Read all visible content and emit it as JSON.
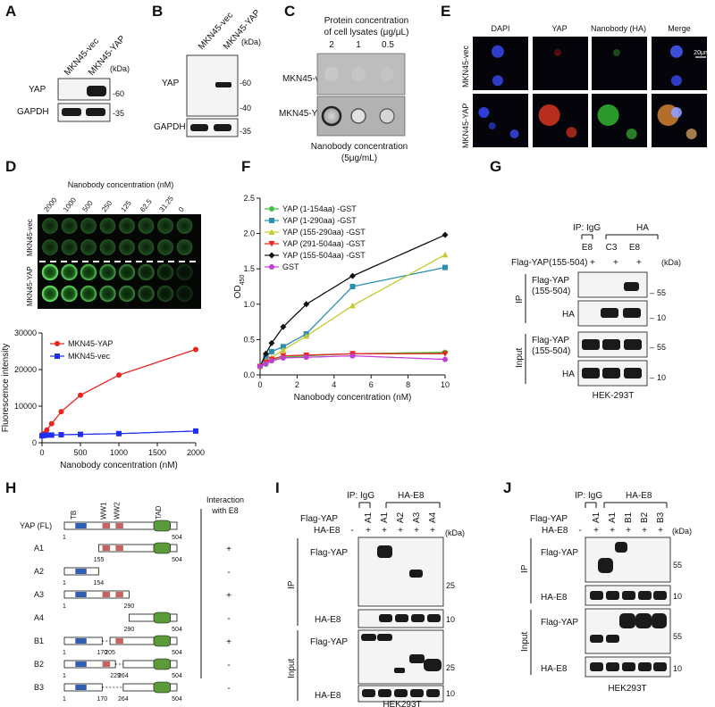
{
  "panels": {
    "A": {
      "label": "A",
      "lanes": [
        "MKN45-vec",
        "MKN45-YAP"
      ],
      "kda": "(kDa)",
      "rows": [
        {
          "label": "YAP",
          "marker": "-60"
        },
        {
          "label": "GAPDH",
          "marker": "-35"
        }
      ]
    },
    "B": {
      "label": "B",
      "lanes": [
        "MKN45-vec",
        "MKN45-YAP"
      ],
      "kda": "(kDa)",
      "rows": [
        {
          "label": "YAP",
          "markers": [
            "-60",
            "-40"
          ]
        },
        {
          "label": "GAPDH",
          "marker": "-35"
        }
      ]
    },
    "C": {
      "label": "C",
      "title1": "Protein concentration",
      "title2": "of cell lysates (μg/μL)",
      "conc": [
        "2",
        "1",
        "0.5"
      ],
      "rows": [
        "MKN45-vec",
        "MKN45-YAP"
      ],
      "foot1": "Nanobody concentration",
      "foot2": "(5μg/mL)"
    },
    "E": {
      "label": "E",
      "cols": [
        "DAPI",
        "YAP",
        "Nanobody (HA)",
        "Merge"
      ],
      "rows": [
        "MKN45-vec",
        "MKN45-YAP"
      ],
      "scale": "20μm"
    },
    "D": {
      "label": "D",
      "title": "Nanobody concentration (nM)",
      "concs": [
        "2000",
        "1000",
        "500",
        "250",
        "125",
        "62.5",
        "31.25",
        "0"
      ],
      "rows": [
        "MKN45-vec",
        "MKN45-YAP"
      ]
    },
    "F": {
      "label": "F"
    },
    "G": {
      "label": "G",
      "ip_label": "IP: IgG",
      "ha_label": "HA",
      "lanes": [
        "E8",
        "C3",
        "E8"
      ],
      "flag_label": "Flag-YAP(155-504)",
      "kda": "(kDa)",
      "section_ip": "IP",
      "section_input": "Input",
      "rows": [
        {
          "label1": "Flag-YAP",
          "label2": "(155-504)",
          "marker": "55"
        },
        {
          "label1": "HA",
          "label2": "",
          "marker": "10"
        },
        {
          "label1": "Flag-YAP",
          "label2": "(155-504)",
          "marker": "55"
        },
        {
          "label1": "HA",
          "label2": "",
          "marker": "10"
        }
      ],
      "cell": "HEK-293T"
    },
    "H": {
      "label": "H",
      "domains": [
        "TB",
        "WW1",
        "WW2",
        "TAD"
      ],
      "header1": "Interaction",
      "header2": "with E8",
      "constructs": [
        {
          "name": "YAP (FL)",
          "n1": "1",
          "n2": "504",
          "result": ""
        },
        {
          "name": "A1",
          "n1": "155",
          "n2": "504",
          "result": "+"
        },
        {
          "name": "A2",
          "n1": "1",
          "n2": "154",
          "result": "-"
        },
        {
          "name": "A3",
          "n1": "1",
          "n2": "290",
          "result": "+"
        },
        {
          "name": "A4",
          "n1": "290",
          "n2": "504",
          "result": "-"
        },
        {
          "name": "B1",
          "n1": "1",
          "n2": "504",
          "mid1": "170",
          "mid2": "205",
          "result": "+"
        },
        {
          "name": "B2",
          "n1": "1",
          "n2": "504",
          "mid1": "229",
          "mid2": "264",
          "result": "-"
        },
        {
          "name": "B3",
          "n1": "1",
          "n2": "504",
          "mid1": "170",
          "mid2": "264",
          "result": "-"
        }
      ]
    },
    "I": {
      "label": "I",
      "ip_label": "IP: IgG",
      "ha_label": "HA-E8",
      "flag": "Flag-YAP",
      "ha": "HA-E8",
      "lanes": [
        "A1",
        "A1",
        "A2",
        "A3",
        "A4"
      ],
      "plus": [
        "+",
        "+",
        "+",
        "+",
        "+"
      ],
      "kda": "(kDa)",
      "section_ip": "IP",
      "section_input": "Input",
      "rows": [
        {
          "label": "Flag-YAP",
          "marker": "25"
        },
        {
          "label": "HA-E8",
          "marker": "10"
        },
        {
          "label": "Flag-YAP",
          "marker": "25"
        },
        {
          "label": "HA-E8",
          "marker": "10"
        }
      ],
      "cell": "HEK293T"
    },
    "J": {
      "label": "J",
      "ip_label": "IP: IgG",
      "ha_label": "HA-E8",
      "flag": "Flag-YAP",
      "ha": "HA-E8",
      "lanes": [
        "A1",
        "A1",
        "B1",
        "B2",
        "B3"
      ],
      "plus": [
        "+",
        "+",
        "+",
        "+",
        "+"
      ],
      "kda": "(kDa)",
      "section_ip": "IP",
      "section_input": "Input",
      "rows": [
        {
          "label": "Flag-YAP",
          "marker": "55"
        },
        {
          "label": "HA-E8",
          "marker": "10"
        },
        {
          "label": "Flag-YAP",
          "marker": "55"
        },
        {
          "label": "HA-E8",
          "marker": "10"
        }
      ],
      "cell": "HEK293T"
    }
  },
  "chart_data": [
    {
      "panel": "D",
      "type": "line",
      "xlabel": "Nanobody concentration (nM)",
      "ylabel": "Fluorescence intensity",
      "xlim": [
        0,
        2000
      ],
      "ylim": [
        0,
        30000
      ],
      "xticks": [
        "0",
        "500",
        "1000",
        "1500",
        "2000"
      ],
      "yticks": [
        "0",
        "10000",
        "20000",
        "30000"
      ],
      "legend": "top-left",
      "series": [
        {
          "name": "MKN45-YAP",
          "color": "#e8251f",
          "marker": "circle",
          "x": [
            0,
            31.25,
            62.5,
            125,
            250,
            500,
            1000,
            2000
          ],
          "y": [
            2200,
            2500,
            3500,
            5200,
            8500,
            13000,
            18500,
            25500
          ]
        },
        {
          "name": "MKN45-vec",
          "color": "#1f2ff0",
          "marker": "square",
          "x": [
            0,
            31.25,
            62.5,
            125,
            250,
            500,
            1000,
            2000
          ],
          "y": [
            1900,
            2000,
            2100,
            2100,
            2200,
            2300,
            2500,
            3200
          ]
        }
      ]
    },
    {
      "panel": "F",
      "type": "line",
      "xlabel": "Nanobody concentration (nM)",
      "ylabel": "OD450",
      "xlim": [
        0,
        10
      ],
      "ylim": [
        0,
        2.5
      ],
      "xticks": [
        "0",
        "2",
        "4",
        "6",
        "8",
        "10"
      ],
      "yticks": [
        "0.0",
        "0.5",
        "1.0",
        "1.5",
        "2.0",
        "2.5"
      ],
      "legend": "top-left",
      "series": [
        {
          "name": "YAP (1-154aa) -GST",
          "color": "#3cc43c",
          "marker": "circle",
          "x": [
            0,
            0.3125,
            0.625,
            1.25,
            2.5,
            5,
            10
          ],
          "y": [
            0.12,
            0.15,
            0.2,
            0.25,
            0.27,
            0.3,
            0.32
          ]
        },
        {
          "name": "YAP (1-290aa) -GST",
          "color": "#2a8fb0",
          "marker": "square",
          "x": [
            0,
            0.3125,
            0.625,
            1.25,
            2.5,
            5,
            10
          ],
          "y": [
            0.12,
            0.25,
            0.33,
            0.4,
            0.58,
            1.25,
            1.52
          ]
        },
        {
          "name": "YAP (155-290aa) -GST",
          "color": "#c8c832",
          "marker": "triangle-up",
          "x": [
            0,
            0.3125,
            0.625,
            1.25,
            2.5,
            5,
            10
          ],
          "y": [
            0.12,
            0.2,
            0.25,
            0.35,
            0.55,
            0.98,
            1.7
          ]
        },
        {
          "name": "YAP (291-504aa) -GST",
          "color": "#e8251f",
          "marker": "triangle-down",
          "x": [
            0,
            0.3125,
            0.625,
            1.25,
            2.5,
            5,
            10
          ],
          "y": [
            0.12,
            0.18,
            0.22,
            0.27,
            0.28,
            0.3,
            0.3
          ]
        },
        {
          "name": "YAP (155-504aa) -GST",
          "color": "#111111",
          "marker": "diamond",
          "x": [
            0,
            0.3125,
            0.625,
            1.25,
            2.5,
            5,
            10
          ],
          "y": [
            0.12,
            0.3,
            0.45,
            0.68,
            1.0,
            1.4,
            1.98
          ]
        },
        {
          "name": "GST",
          "color": "#c23fd6",
          "marker": "circle",
          "x": [
            0,
            0.3125,
            0.625,
            1.25,
            2.5,
            5,
            10
          ],
          "y": [
            0.12,
            0.16,
            0.2,
            0.24,
            0.25,
            0.27,
            0.22
          ]
        }
      ]
    }
  ]
}
